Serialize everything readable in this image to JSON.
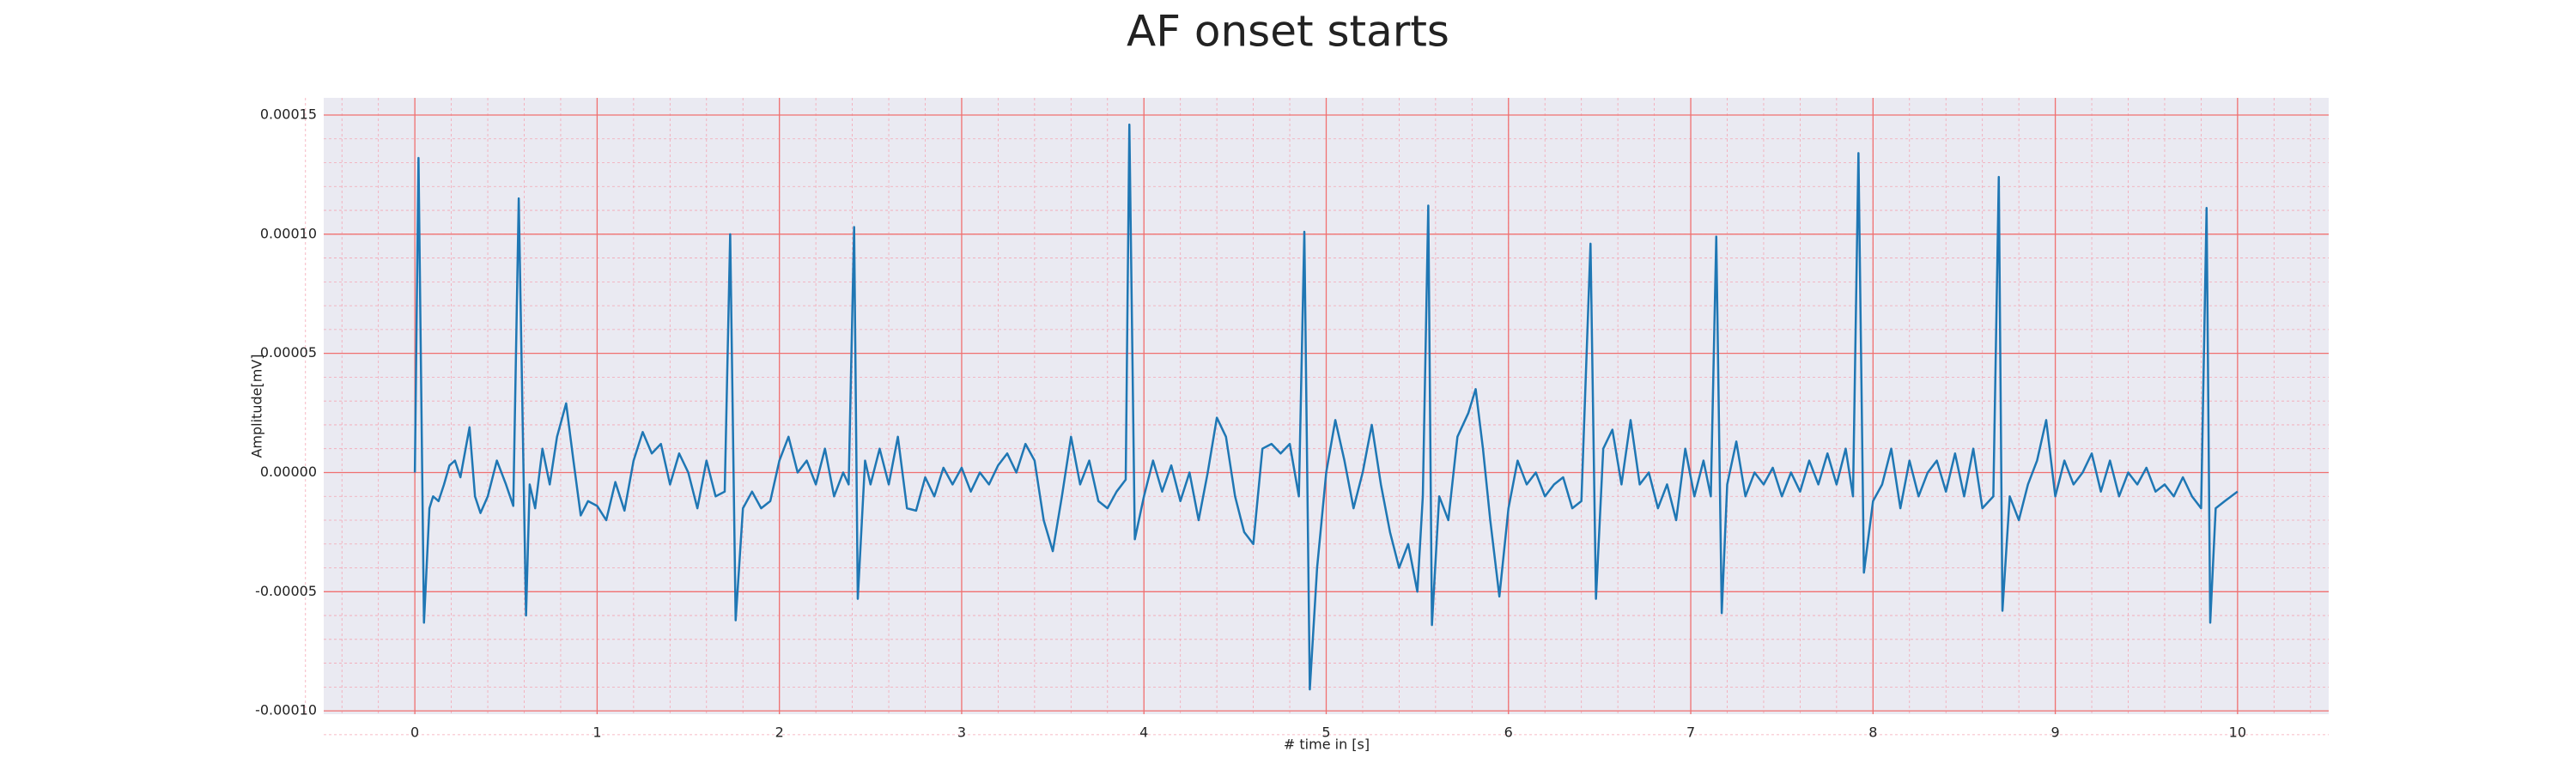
{
  "chart_data": {
    "type": "line",
    "title": "AF onset starts",
    "xlabel": "# time in [s]",
    "ylabel": "Amplitude[mV]",
    "color": "#1f77b4",
    "grid": true,
    "xlim": [
      -0.5,
      10.5
    ],
    "ylim": [
      -0.0001014,
      0.0001572
    ],
    "xticks": [
      0,
      1,
      2,
      3,
      4,
      5,
      6,
      7,
      8,
      9,
      10
    ],
    "yticks": [
      {
        "value": -0.0001,
        "label": "-0.00010"
      },
      {
        "value": -5e-05,
        "label": "-0.00005"
      },
      {
        "value": 0,
        "label": "0.00000"
      },
      {
        "value": 5e-05,
        "label": "0.00005"
      },
      {
        "value": 0.0001,
        "label": "0.00010"
      },
      0.00015
    ],
    "x": [
      0,
      0.02,
      0.05,
      0.08,
      0.1,
      0.13,
      0.16,
      0.19,
      0.22,
      0.25,
      0.3,
      0.33,
      0.36,
      0.4,
      0.45,
      0.5,
      0.54,
      0.57,
      0.61,
      0.63,
      0.66,
      0.7,
      0.74,
      0.78,
      0.83,
      0.87,
      0.91,
      0.95,
      1.0,
      1.05,
      1.1,
      1.15,
      1.2,
      1.25,
      1.3,
      1.35,
      1.4,
      1.45,
      1.5,
      1.55,
      1.6,
      1.65,
      1.7,
      1.73,
      1.76,
      1.8,
      1.85,
      1.9,
      1.95,
      2.0,
      2.05,
      2.1,
      2.15,
      2.2,
      2.25,
      2.3,
      2.35,
      2.38,
      2.41,
      2.43,
      2.47,
      2.5,
      2.55,
      2.6,
      2.65,
      2.7,
      2.75,
      2.8,
      2.85,
      2.9,
      2.95,
      3.0,
      3.05,
      3.1,
      3.15,
      3.2,
      3.25,
      3.3,
      3.35,
      3.4,
      3.45,
      3.5,
      3.55,
      3.6,
      3.65,
      3.7,
      3.75,
      3.8,
      3.85,
      3.9,
      3.92,
      3.95,
      4.0,
      4.05,
      4.1,
      4.15,
      4.2,
      4.25,
      4.3,
      4.35,
      4.4,
      4.45,
      4.5,
      4.55,
      4.6,
      4.65,
      4.7,
      4.75,
      4.8,
      4.85,
      4.88,
      4.91,
      4.95,
      5.0,
      5.05,
      5.1,
      5.15,
      5.2,
      5.25,
      5.3,
      5.35,
      5.4,
      5.45,
      5.5,
      5.53,
      5.56,
      5.58,
      5.62,
      5.67,
      5.72,
      5.78,
      5.82,
      5.86,
      5.9,
      5.95,
      6.0,
      6.05,
      6.1,
      6.15,
      6.2,
      6.25,
      6.3,
      6.35,
      6.4,
      6.45,
      6.48,
      6.52,
      6.57,
      6.62,
      6.67,
      6.72,
      6.77,
      6.82,
      6.87,
      6.92,
      6.97,
      7.02,
      7.07,
      7.11,
      7.14,
      7.17,
      7.2,
      7.25,
      7.3,
      7.35,
      7.4,
      7.45,
      7.5,
      7.55,
      7.6,
      7.65,
      7.7,
      7.75,
      7.8,
      7.85,
      7.89,
      7.92,
      7.95,
      8.0,
      8.05,
      8.1,
      8.15,
      8.2,
      8.25,
      8.3,
      8.35,
      8.4,
      8.45,
      8.5,
      8.55,
      8.6,
      8.66,
      8.69,
      8.71,
      8.75,
      8.8,
      8.85,
      8.9,
      8.95,
      9.0,
      9.05,
      9.1,
      9.15,
      9.2,
      9.25,
      9.3,
      9.35,
      9.4,
      9.45,
      9.5,
      9.55,
      9.6,
      9.65,
      9.7,
      9.75,
      9.8,
      9.83,
      9.85,
      9.88,
      9.93,
      10.0
    ],
    "values": [
      0,
      0.000132,
      -6.3e-05,
      -1.5e-05,
      -1e-05,
      -1.2e-05,
      -5e-06,
      3e-06,
      5e-06,
      -2e-06,
      1.9e-05,
      -1e-05,
      -1.7e-05,
      -1e-05,
      5e-06,
      -5e-06,
      -1.4e-05,
      0.000115,
      -6e-05,
      -5e-06,
      -1.5e-05,
      1e-05,
      -5e-06,
      1.5e-05,
      2.9e-05,
      5e-06,
      -1.8e-05,
      -1.2e-05,
      -1.4e-05,
      -2e-05,
      -4e-06,
      -1.6e-05,
      5e-06,
      1.7e-05,
      8e-06,
      1.2e-05,
      -5e-06,
      8e-06,
      0,
      -1.5e-05,
      5e-06,
      -1e-05,
      -8e-06,
      0.0001,
      -6.2e-05,
      -1.5e-05,
      -8e-06,
      -1.5e-05,
      -1.2e-05,
      5e-06,
      1.5e-05,
      0,
      5e-06,
      -5e-06,
      1e-05,
      -1e-05,
      0,
      -5e-06,
      0.000103,
      -5.3e-05,
      5e-06,
      -5e-06,
      1e-05,
      -5e-06,
      1.5e-05,
      -1.5e-05,
      -1.6e-05,
      -2e-06,
      -1e-05,
      2e-06,
      -5e-06,
      2e-06,
      -8e-06,
      0,
      -5e-06,
      3e-06,
      8e-06,
      0,
      1.2e-05,
      5e-06,
      -2e-05,
      -3.3e-05,
      -1e-05,
      1.5e-05,
      -5e-06,
      5e-06,
      -1.2e-05,
      -1.5e-05,
      -8e-06,
      -3e-06,
      0.000146,
      -2.8e-05,
      -1e-05,
      5e-06,
      -8e-06,
      3e-06,
      -1.2e-05,
      0,
      -2e-05,
      0,
      2.3e-05,
      1.5e-05,
      -1e-05,
      -2.5e-05,
      -3e-05,
      1e-05,
      1.2e-05,
      8e-06,
      1.2e-05,
      -1e-05,
      0.000101,
      -9.1e-05,
      -4e-05,
      0,
      2.2e-05,
      5e-06,
      -1.5e-05,
      0,
      2e-05,
      -5e-06,
      -2.5e-05,
      -4e-05,
      -3e-05,
      -5e-05,
      -1e-05,
      0.000112,
      -6.4e-05,
      -1e-05,
      -2e-05,
      1.5e-05,
      2.5e-05,
      3.5e-05,
      1e-05,
      -2e-05,
      -5.2e-05,
      -1.5e-05,
      5e-06,
      -5e-06,
      0,
      -1e-05,
      -5e-06,
      -2e-06,
      -1.5e-05,
      -1.2e-05,
      9.6e-05,
      -5.3e-05,
      1e-05,
      1.8e-05,
      -5e-06,
      2.2e-05,
      -5e-06,
      0,
      -1.5e-05,
      -5e-06,
      -2e-05,
      1e-05,
      -1e-05,
      5e-06,
      -1e-05,
      9.9e-05,
      -5.9e-05,
      -5e-06,
      1.3e-05,
      -1e-05,
      0,
      -5e-06,
      2e-06,
      -1e-05,
      0,
      -8e-06,
      5e-06,
      -5e-06,
      8e-06,
      -5e-06,
      1e-05,
      -1e-05,
      0.000134,
      -4.2e-05,
      -1.2e-05,
      -5e-06,
      1e-05,
      -1.5e-05,
      5e-06,
      -1e-05,
      0,
      5e-06,
      -8e-06,
      8e-06,
      -1e-05,
      1e-05,
      -1.5e-05,
      -1e-05,
      0.000124,
      -5.8e-05,
      -1e-05,
      -2e-05,
      -5e-06,
      5e-06,
      2.2e-05,
      -1e-05,
      5e-06,
      -5e-06,
      0,
      8e-06,
      -8e-06,
      5e-06,
      -1e-05,
      0,
      -5e-06,
      2e-06,
      -8e-06,
      -5e-06,
      -1e-05,
      -2e-06,
      -1e-05,
      -1.5e-05,
      0.000111,
      -6.3e-05,
      -1.5e-05,
      -1.2e-05,
      -8e-06
    ]
  }
}
